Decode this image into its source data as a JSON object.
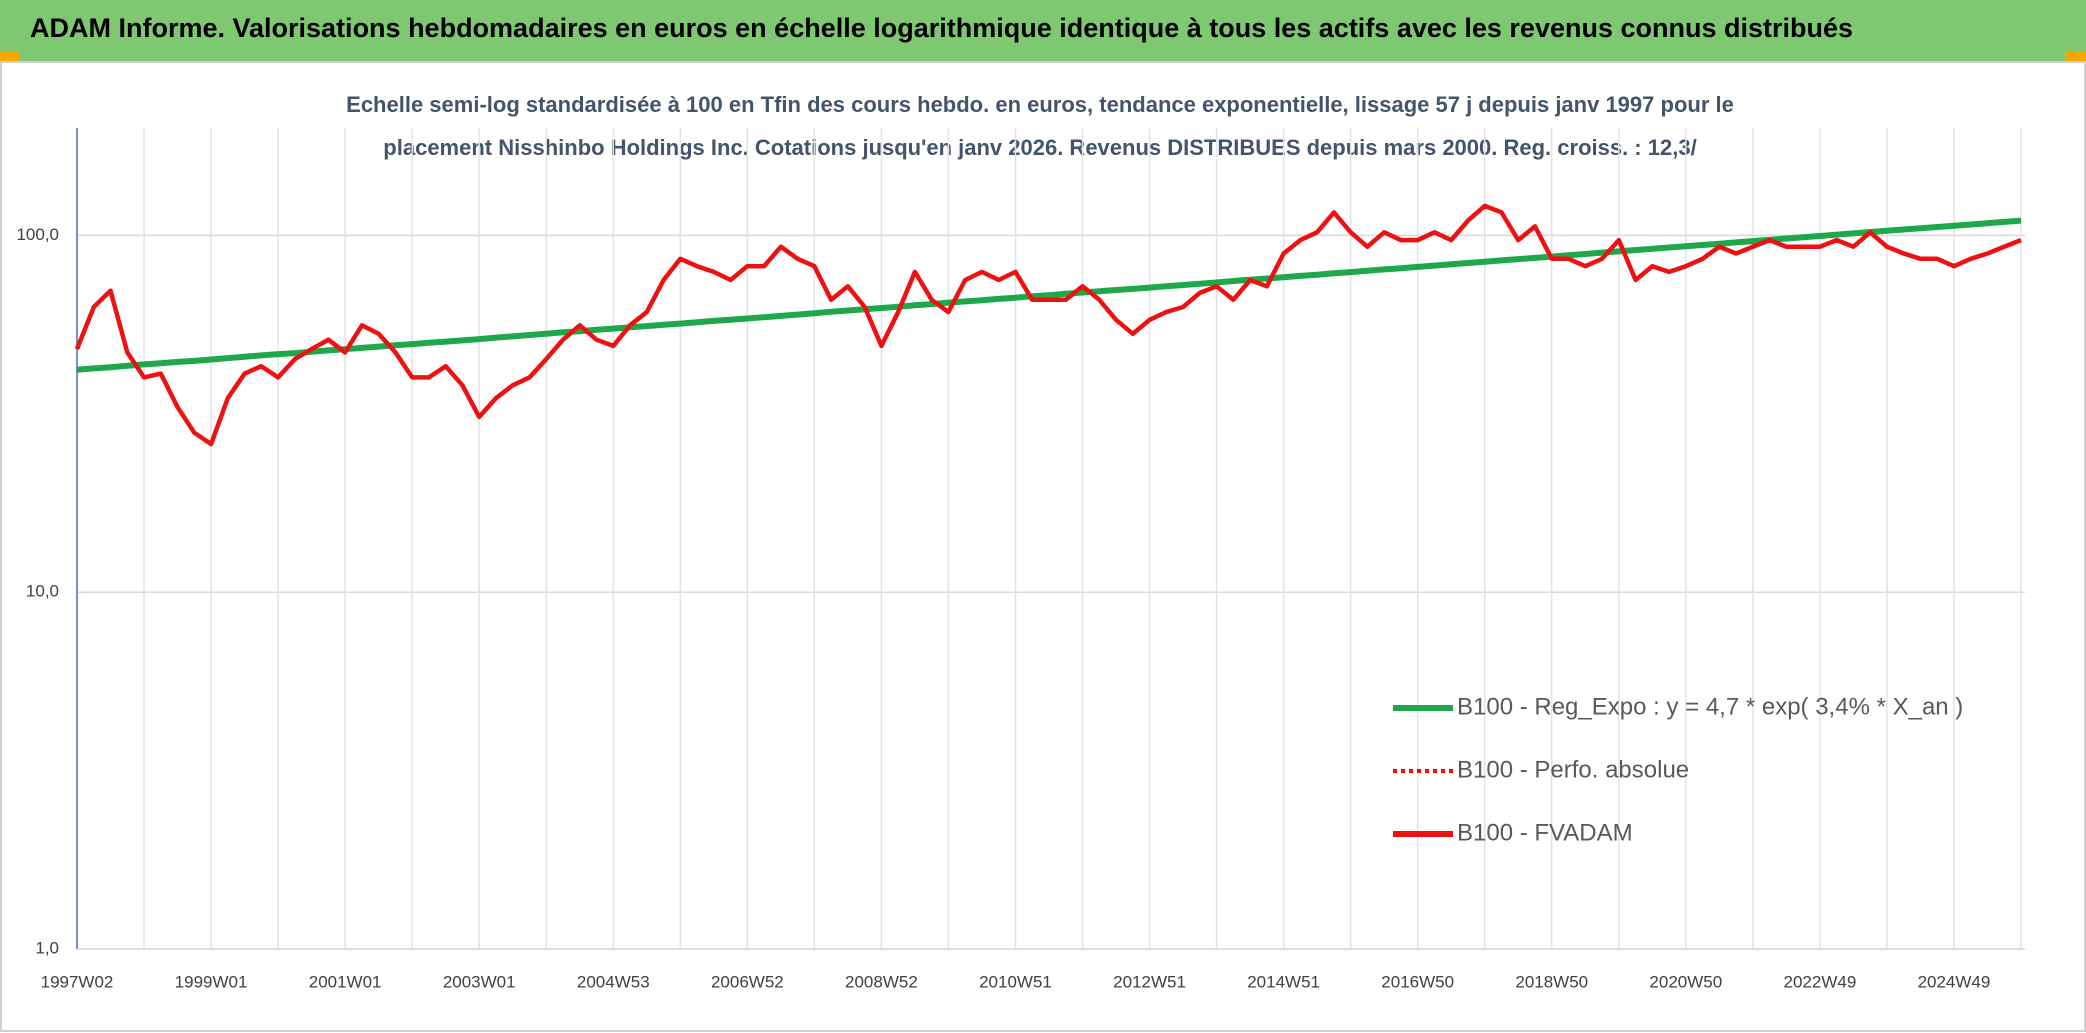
{
  "chart_data": {
    "type": "line",
    "title": "ADAM Informe. Valorisations hebdomadaires en euros en échelle logarithmique identique à tous les actifs avec les revenus connus distribués",
    "subtitle": [
      "Echelle semi-log standardisée à 100 en Tfin des cours hebdo. en euros, tendance exponentielle, lissage 57 j depuis janv 1997 pour le",
      "placement Nisshinbo Holdings Inc. Cotations jusqu'en janv 2026. Revenus DISTRIBUES depuis mars 2000. Reg. croiss. : 12,3/"
    ],
    "log_scale": true,
    "grid": true,
    "legend": "right",
    "ylim": [
      1,
      200
    ],
    "yticks": [
      {
        "value": 1,
        "label": "1,0"
      },
      {
        "value": 10,
        "label": "10,0"
      },
      {
        "value": 100,
        "label": "100,0"
      }
    ],
    "categories": [
      "1997W02",
      null,
      null,
      null,
      null,
      null,
      null,
      null,
      "1999W01",
      null,
      null,
      null,
      null,
      null,
      null,
      null,
      "2001W01",
      null,
      null,
      null,
      null,
      null,
      null,
      null,
      "2003W01",
      null,
      null,
      null,
      null,
      null,
      null,
      null,
      "2004W53",
      null,
      null,
      null,
      null,
      null,
      null,
      null,
      "2006W52",
      null,
      null,
      null,
      null,
      null,
      null,
      null,
      "2008W52",
      null,
      null,
      null,
      null,
      null,
      null,
      null,
      "2010W51",
      null,
      null,
      null,
      null,
      null,
      null,
      null,
      "2012W51",
      null,
      null,
      null,
      null,
      null,
      null,
      null,
      "2014W51",
      null,
      null,
      null,
      null,
      null,
      null,
      null,
      "2016W50",
      null,
      null,
      null,
      null,
      null,
      null,
      null,
      "2018W50",
      null,
      null,
      null,
      null,
      null,
      null,
      null,
      "2020W50",
      null,
      null,
      null,
      null,
      null,
      null,
      null,
      "2022W49",
      null,
      null,
      null,
      null,
      null,
      null,
      null,
      "2024W49",
      null,
      null,
      null,
      null
    ],
    "series": [
      {
        "name": "B100 - Reg_Expo : y = 4,7 * exp( 3,4% *  X_an )",
        "color": "#1fa84a",
        "style": "solid",
        "values": [
          42.0,
          42.4,
          42.7,
          43.1,
          43.5,
          43.8,
          44.2,
          44.5,
          44.9,
          45.3,
          45.7,
          46.1,
          46.5,
          46.8,
          47.2,
          47.6,
          48.0,
          48.4,
          48.8,
          49.2,
          49.6,
          50.0,
          50.4,
          50.8,
          51.2,
          51.7,
          52.1,
          52.6,
          53.0,
          53.5,
          53.9,
          54.4,
          54.8,
          55.3,
          55.7,
          56.2,
          56.6,
          57.1,
          57.6,
          58.0,
          58.5,
          59.0,
          59.5,
          60.0,
          60.5,
          61.1,
          61.6,
          62.1,
          62.6,
          63.1,
          63.7,
          64.2,
          64.8,
          65.3,
          65.8,
          66.4,
          66.9,
          67.5,
          68.0,
          68.6,
          69.2,
          69.7,
          70.3,
          70.8,
          71.4,
          72.0,
          72.6,
          73.2,
          73.8,
          74.5,
          75.1,
          75.7,
          76.3,
          77.0,
          77.6,
          78.3,
          78.9,
          79.6,
          80.3,
          80.9,
          81.6,
          82.3,
          83.0,
          83.7,
          84.4,
          85.1,
          85.8,
          86.5,
          87.2,
          88.0,
          88.7,
          89.5,
          90.2,
          91.0,
          91.7,
          92.5,
          93.2,
          94.0,
          94.8,
          95.6,
          96.4,
          97.2,
          98.0,
          98.8,
          99.6,
          100.5,
          101.3,
          102.2,
          103.0,
          103.9,
          104.7,
          105.6,
          106.4,
          107.3,
          108.2,
          109.1,
          110.0
        ]
      },
      {
        "name": "B100 - Perfo. absolue",
        "color": "#ff0000",
        "style": "dotted",
        "values": [
          48,
          63,
          70,
          47,
          40,
          41,
          33,
          28,
          26,
          35,
          41,
          43,
          40,
          45,
          48,
          51,
          47,
          56,
          53,
          47,
          40,
          40,
          43,
          38,
          31,
          35,
          38,
          40,
          45,
          51,
          56,
          51,
          49,
          56,
          61,
          75,
          86,
          82,
          79,
          75,
          82,
          82,
          93,
          86,
          82,
          66,
          72,
          63,
          49,
          61,
          79,
          66,
          61,
          75,
          79,
          75,
          79,
          66,
          66,
          66,
          72,
          66,
          58,
          53,
          58,
          61,
          63,
          69,
          72,
          66,
          75,
          72,
          89,
          97,
          102,
          116,
          102,
          93,
          102,
          97,
          97,
          102,
          97,
          110,
          121,
          116,
          97,
          106,
          86,
          86,
          82,
          86,
          97,
          75,
          82,
          79,
          82,
          86,
          93,
          89,
          93,
          97,
          93,
          93,
          93,
          97,
          93,
          102,
          93,
          89,
          86,
          86,
          82,
          86,
          89,
          93,
          97
        ]
      },
      {
        "name": "B100 - FVADAM",
        "color": "#ee1111",
        "style": "solid",
        "values": [
          48,
          63,
          70,
          47,
          40,
          41,
          33,
          28,
          26,
          35,
          41,
          43,
          40,
          45,
          48,
          51,
          47,
          56,
          53,
          47,
          40,
          40,
          43,
          38,
          31,
          35,
          38,
          40,
          45,
          51,
          56,
          51,
          49,
          56,
          61,
          75,
          86,
          82,
          79,
          75,
          82,
          82,
          93,
          86,
          82,
          66,
          72,
          63,
          49,
          61,
          79,
          66,
          61,
          75,
          79,
          75,
          79,
          66,
          66,
          66,
          72,
          66,
          58,
          53,
          58,
          61,
          63,
          69,
          72,
          66,
          75,
          72,
          89,
          97,
          102,
          116,
          102,
          93,
          102,
          97,
          97,
          102,
          97,
          110,
          121,
          116,
          97,
          106,
          86,
          86,
          82,
          86,
          97,
          75,
          82,
          79,
          82,
          86,
          93,
          89,
          93,
          97,
          93,
          93,
          93,
          97,
          93,
          102,
          93,
          89,
          86,
          86,
          82,
          86,
          89,
          93,
          97
        ]
      }
    ]
  }
}
